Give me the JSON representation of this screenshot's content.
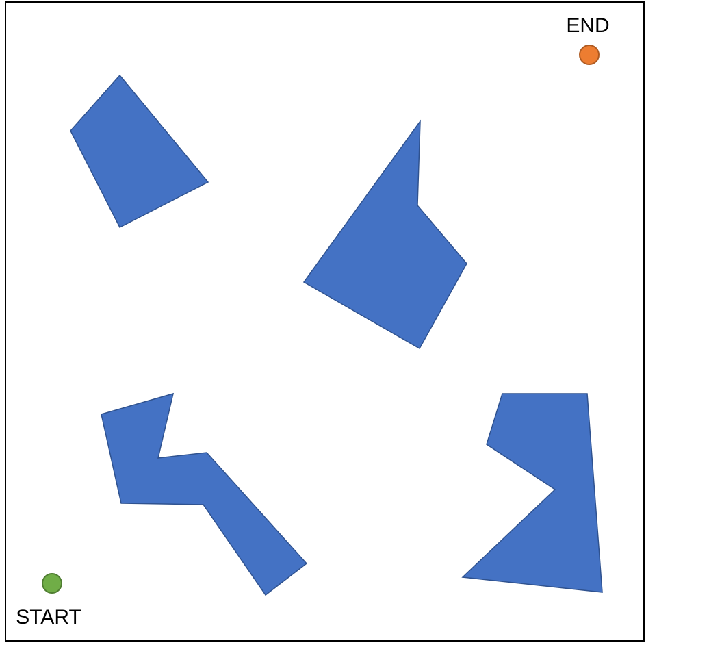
{
  "colors": {
    "obstacle_fill": "#4472C4",
    "obstacle_stroke": "#2F528F",
    "start_fill": "#70AD47",
    "start_stroke": "#507E32",
    "end_fill": "#ED7D31",
    "end_stroke": "#AE5A21",
    "border": "#000000"
  },
  "labels": {
    "start": "START",
    "end": "END"
  },
  "obstacles": [
    {
      "name": "obstacle-top-left"
    },
    {
      "name": "obstacle-center"
    },
    {
      "name": "obstacle-bottom-left"
    },
    {
      "name": "obstacle-bottom-right"
    }
  ]
}
